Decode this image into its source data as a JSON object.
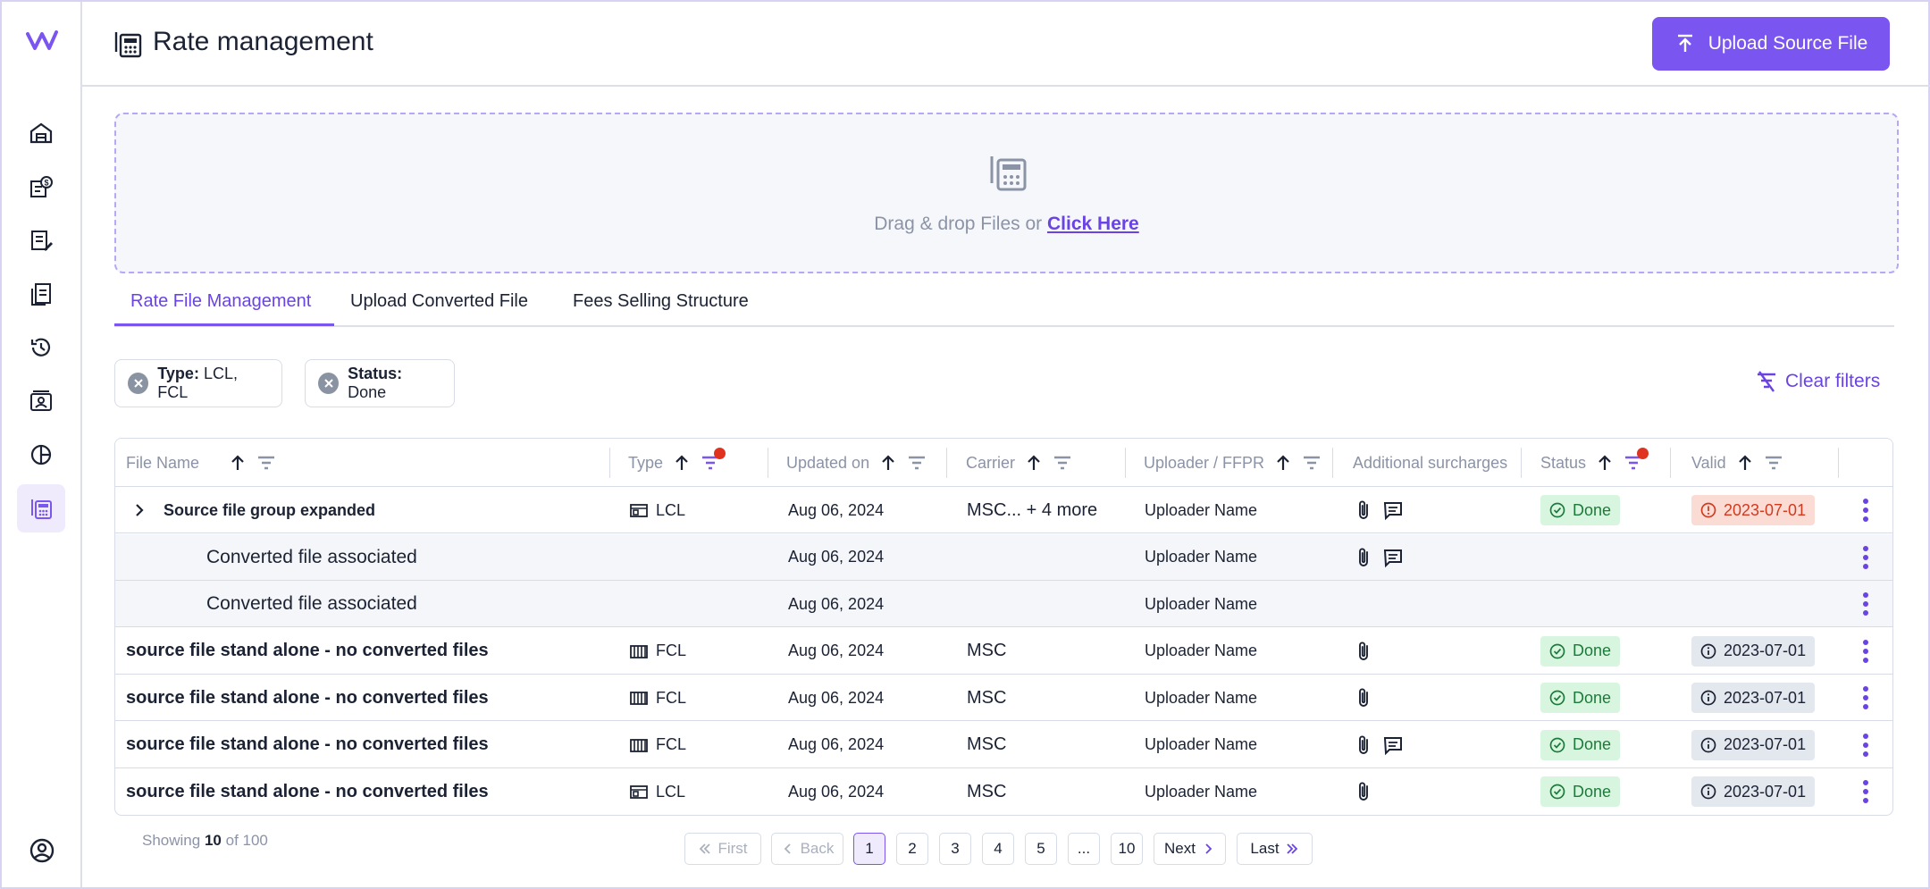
{
  "sidebar": {
    "logo_icon": "brand-logo-icon",
    "items": [
      {
        "icon": "warehouse-icon",
        "active": false
      },
      {
        "icon": "money-report-icon",
        "active": false
      },
      {
        "icon": "invoice-edit-icon",
        "active": false
      },
      {
        "icon": "documents-icon",
        "active": false
      },
      {
        "icon": "history-icon",
        "active": false
      },
      {
        "icon": "contact-card-icon",
        "active": false
      },
      {
        "icon": "pie-chart-icon",
        "active": false
      },
      {
        "icon": "rate-calculator-icon",
        "active": true
      }
    ],
    "bottom_icon": "user-profile-icon"
  },
  "header": {
    "title": "Rate management",
    "title_icon": "rate-calculator-icon",
    "upload_button": "Upload Source File",
    "upload_icon": "upload-icon"
  },
  "dropzone": {
    "text": "Drag & drop Files or",
    "link": "Click Here"
  },
  "tabs": [
    {
      "label": "Rate File Management",
      "active": true
    },
    {
      "label": "Upload Converted File",
      "active": false
    },
    {
      "label": "Fees Selling Structure",
      "active": false
    }
  ],
  "filters": [
    {
      "key": "Type:",
      "value": "LCL, FCL"
    },
    {
      "key": "Status:",
      "value": "Done"
    }
  ],
  "clear_filters": "Clear filters",
  "table": {
    "columns": [
      "File Name",
      "Type",
      "Updated on",
      "Carrier",
      "Uploader / FFPR",
      "Additional surcharges",
      "Status",
      "Valid"
    ],
    "rows": [
      {
        "kind": "group",
        "name": "Source file group expanded",
        "type": "LCL",
        "updated": "Aug 06, 2024",
        "carrier": "MSC... + 4 more",
        "uploader": "Uploader Name",
        "attach": true,
        "comment": true,
        "status": "Done",
        "valid": "2023-07-01",
        "expired": true
      },
      {
        "kind": "child",
        "name": "Converted file associated",
        "type": "",
        "updated": "Aug 06, 2024",
        "carrier": "",
        "uploader": "Uploader Name",
        "attach": true,
        "comment": true,
        "status": "",
        "valid": ""
      },
      {
        "kind": "child",
        "name": "Converted file associated",
        "type": "",
        "updated": "Aug 06, 2024",
        "carrier": "",
        "uploader": "Uploader Name",
        "attach": false,
        "comment": false,
        "status": "",
        "valid": ""
      },
      {
        "kind": "single",
        "name": "source file stand alone - no converted files",
        "type": "FCL",
        "updated": "Aug 06, 2024",
        "carrier": "MSC",
        "uploader": "Uploader Name",
        "attach": true,
        "comment": false,
        "status": "Done",
        "valid": "2023-07-01"
      },
      {
        "kind": "single",
        "name": "source file stand alone - no converted files",
        "type": "FCL",
        "updated": "Aug 06, 2024",
        "carrier": "MSC",
        "uploader": "Uploader Name",
        "attach": true,
        "comment": false,
        "status": "Done",
        "valid": "2023-07-01"
      },
      {
        "kind": "single",
        "name": "source file stand alone - no converted files",
        "type": "FCL",
        "updated": "Aug 06, 2024",
        "carrier": "MSC",
        "uploader": "Uploader Name",
        "attach": true,
        "comment": true,
        "status": "Done",
        "valid": "2023-07-01"
      },
      {
        "kind": "single",
        "name": "source file stand alone - no converted files",
        "type": "LCL",
        "updated": "Aug 06, 2024",
        "carrier": "MSC",
        "uploader": "Uploader Name",
        "attach": true,
        "comment": false,
        "status": "Done",
        "valid": "2023-07-01"
      }
    ]
  },
  "footer": {
    "showing_prefix": "Showing",
    "showing_count": "10",
    "showing_suffix": "of 100",
    "pager": {
      "first": "First",
      "back": "Back",
      "pages": [
        "1",
        "2",
        "3",
        "4",
        "5",
        "...",
        "10"
      ],
      "current": "1",
      "next": "Next",
      "last": "Last"
    }
  },
  "colors": {
    "accent": "#7b55f0",
    "done_bg": "#d8f6df",
    "expired_bg": "#fbdcd4",
    "filter_dot": "#e0331f"
  }
}
